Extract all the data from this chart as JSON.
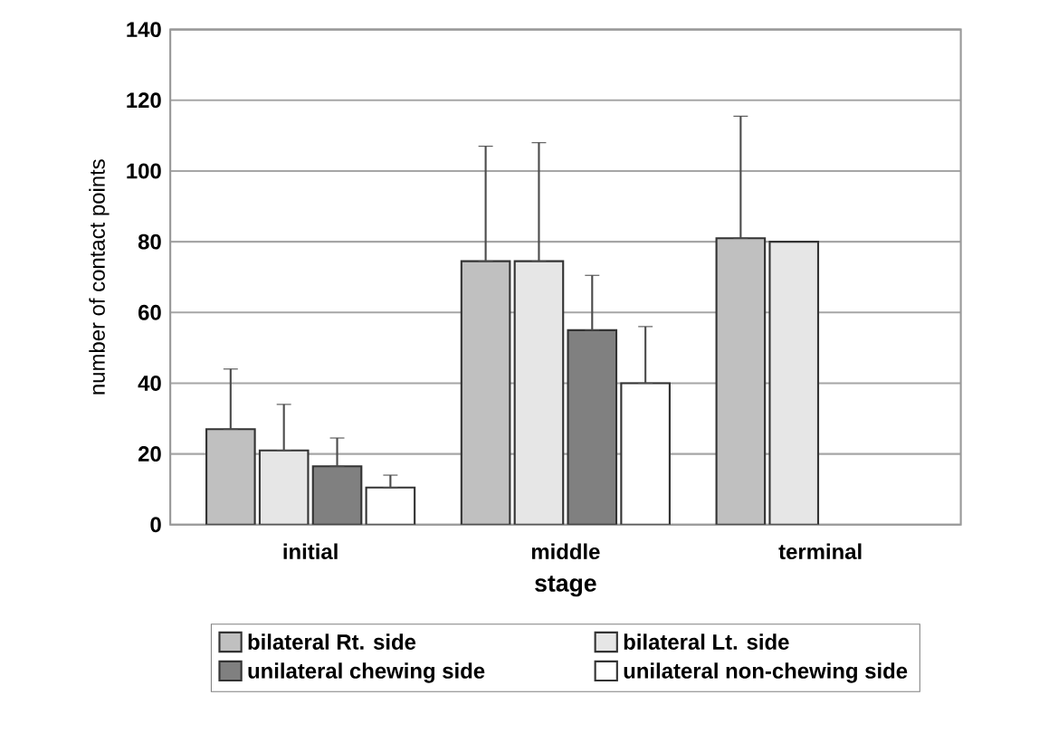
{
  "chart_data": {
    "type": "bar",
    "xlabel": "stage",
    "ylabel": "number of contact points",
    "categories": [
      "initial",
      "middle",
      "terminal"
    ],
    "series": [
      {
        "name": "bilateral Rt. side",
        "color": "#c0c0c0",
        "values": [
          27,
          74.5,
          81
        ],
        "errors": [
          [
            27,
            44
          ],
          [
            74.5,
            107
          ],
          [
            81,
            115.5
          ]
        ]
      },
      {
        "name": "bilateral Lt. side",
        "color": "#e6e6e6",
        "values": [
          21,
          74.5,
          80
        ],
        "errors": [
          [
            21,
            34
          ],
          [
            74.5,
            108
          ],
          null
        ]
      },
      {
        "name": "unilateral chewing side",
        "color": "#808080",
        "values": [
          16.5,
          55,
          null
        ],
        "errors": [
          [
            16.5,
            24.5
          ],
          [
            55,
            70.5
          ],
          null
        ]
      },
      {
        "name": "unilateral non-chewing side",
        "color": "#ffffff",
        "values": [
          10.5,
          40,
          null
        ],
        "errors": [
          [
            10.5,
            14
          ],
          [
            40,
            56
          ],
          null
        ]
      }
    ],
    "ylim": [
      0,
      140
    ],
    "yticks": [
      0,
      20,
      40,
      60,
      80,
      100,
      120,
      140
    ],
    "grid": "y",
    "legend": "bottom"
  }
}
